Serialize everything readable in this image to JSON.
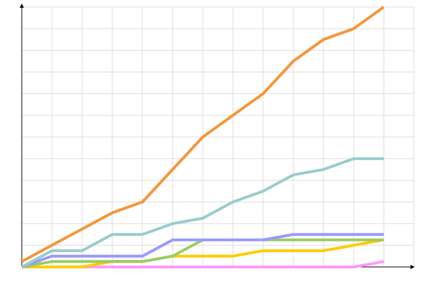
{
  "chart_data": {
    "type": "line",
    "x": [
      0,
      1,
      2,
      3,
      4,
      5,
      6,
      7,
      8,
      9,
      10,
      11,
      12
    ],
    "xlim": [
      0,
      13
    ],
    "xticks": [
      1,
      2,
      3,
      4,
      5,
      6,
      7,
      8,
      9,
      10,
      11,
      12,
      13
    ],
    "ylim": [
      0,
      12
    ],
    "yticks": [
      1,
      2,
      3,
      4,
      5,
      6,
      7,
      8,
      9,
      10,
      11,
      12
    ],
    "grid": true,
    "series": [
      {
        "color": "#f4963a",
        "values": [
          0.25,
          1,
          1.75,
          2.5,
          3,
          4.5,
          6,
          7,
          8,
          9.5,
          10.5,
          11,
          12
        ]
      },
      {
        "color": "#99cccc",
        "values": [
          0,
          0.75,
          0.75,
          1.5,
          1.5,
          2,
          2.25,
          3,
          3.5,
          4.25,
          4.5,
          5,
          5
        ]
      },
      {
        "color": "#9999ff",
        "values": [
          0,
          0.5,
          0.5,
          0.5,
          0.5,
          1.25,
          1.25,
          1.25,
          1.25,
          1.5,
          1.5,
          1.5,
          1.5
        ]
      },
      {
        "color": "#99cc66",
        "values": [
          0,
          0.25,
          0.25,
          0.25,
          0.25,
          0.5,
          1.25,
          1.25,
          1.25,
          1.25,
          1.25,
          1.25,
          1.25
        ]
      },
      {
        "color": "#ffcc00",
        "values": [
          0,
          0,
          0,
          0.25,
          0.25,
          0.5,
          0.5,
          0.5,
          0.75,
          0.75,
          0.75,
          1,
          1.25
        ]
      },
      {
        "color": "#ff99ff",
        "values": [
          0,
          0,
          0,
          0,
          0,
          0,
          0,
          0,
          0,
          0,
          0,
          0,
          0.25
        ]
      }
    ]
  }
}
